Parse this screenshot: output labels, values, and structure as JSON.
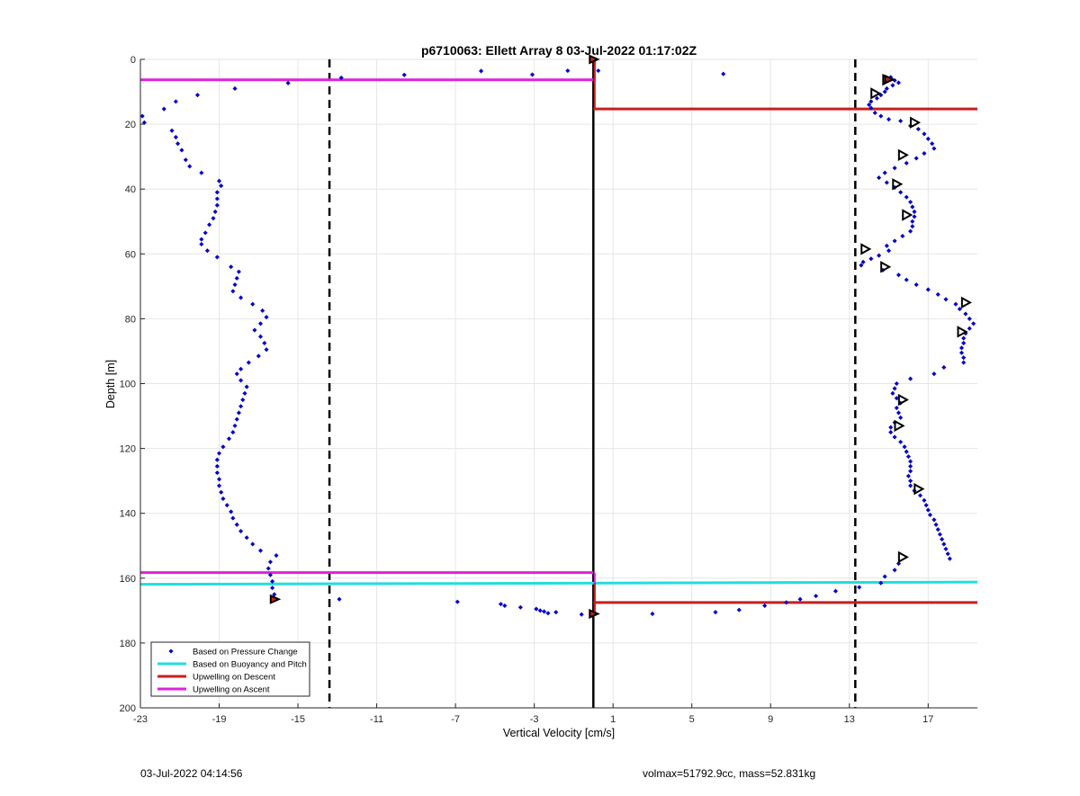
{
  "chart_data": {
    "type": "scatter",
    "title": "p6710063: Ellett Array 8 03-Jul-2022 01:17:02Z",
    "xlabel": "Vertical Velocity [cm/s]",
    "ylabel": "Depth [m]",
    "xlim": [
      -23,
      19.5
    ],
    "ylim": [
      0,
      200
    ],
    "y_reversed": true,
    "grid": true,
    "xticks": [
      -23,
      -19,
      -15,
      -11,
      -7,
      -3,
      1,
      5,
      9,
      13,
      17
    ],
    "yticks": [
      0,
      20,
      40,
      60,
      80,
      100,
      120,
      140,
      160,
      180,
      200
    ],
    "legend_position": "bottom-left",
    "legend": [
      {
        "label": "Based on Pressure Change",
        "color": "#0000cc",
        "kind": "dot"
      },
      {
        "label": "Based on Buoyancy and Pitch",
        "color": "#22dddd",
        "kind": "line"
      },
      {
        "label": "Upwelling on Descent",
        "color": "#c81e1e",
        "kind": "line"
      },
      {
        "label": "Upwelling on Ascent",
        "color": "#dd22dd",
        "kind": "line"
      }
    ],
    "vertical_lines": [
      {
        "x": -13.4,
        "style": "dashed",
        "color": "#000000"
      },
      {
        "x": 13.3,
        "style": "dashed",
        "color": "#000000"
      },
      {
        "x": 0,
        "style": "solid",
        "color": "#000000"
      }
    ],
    "horizontal_lines": [
      {
        "series": "Upwelling on Ascent",
        "y": 6.3,
        "x1": -23,
        "x2": 0,
        "color": "#dd22dd"
      },
      {
        "series": "Upwelling on Ascent",
        "y": 158.3,
        "x1": -23,
        "x2": 0,
        "color": "#dd22dd"
      },
      {
        "series": "Upwelling on Descent",
        "y": 15.3,
        "x1": 0,
        "x2": 19.5,
        "color": "#c81e1e"
      },
      {
        "series": "Upwelling on Descent",
        "y": 167.5,
        "x1": 0,
        "x2": 19.5,
        "color": "#c81e1e"
      },
      {
        "series": "Based on Buoyancy and Pitch",
        "y1": 161.9,
        "y2": 161.2,
        "x1": -23,
        "x2": 19.5,
        "color": "#22dddd"
      }
    ],
    "vertical_segments": [
      {
        "x": 0,
        "y1": 0,
        "y2": 6.3,
        "color": "#dd22dd"
      },
      {
        "x": 0,
        "y1": 158.3,
        "y2": 171,
        "color": "#dd22dd"
      },
      {
        "x": 0,
        "y1": 0,
        "y2": 15.3,
        "color": "#c81e1e"
      },
      {
        "x": 0,
        "y1": 161.5,
        "y2": 171,
        "color": "#c81e1e"
      }
    ],
    "series": [
      {
        "name": "Based on Pressure Change",
        "color": "#0000cc",
        "points": [
          [
            -22.9,
            17.5
          ],
          [
            -22.8,
            19.5
          ],
          [
            -21.8,
            15.3
          ],
          [
            -21.2,
            13
          ],
          [
            -20.1,
            11
          ],
          [
            -18.2,
            9
          ],
          [
            -15.5,
            7.3
          ],
          [
            -12.8,
            5.7
          ],
          [
            -9.6,
            4.8
          ],
          [
            -5.7,
            3.6
          ],
          [
            -3.1,
            4.7
          ],
          [
            -1.3,
            3.5
          ],
          [
            0.25,
            3.5
          ],
          [
            6.6,
            4.5
          ],
          [
            -21.4,
            22
          ],
          [
            -21.2,
            24
          ],
          [
            -21.1,
            26
          ],
          [
            -20.9,
            28
          ],
          [
            -20.7,
            31
          ],
          [
            -20.5,
            33
          ],
          [
            -19.9,
            35
          ],
          [
            -19,
            37.5
          ],
          [
            -18.9,
            39
          ],
          [
            -19.1,
            41
          ],
          [
            -19.1,
            43
          ],
          [
            -19.1,
            45
          ],
          [
            -19.2,
            47
          ],
          [
            -19.3,
            49
          ],
          [
            -19.5,
            51
          ],
          [
            -19.7,
            53.5
          ],
          [
            -19.9,
            55.5
          ],
          [
            -19.9,
            57
          ],
          [
            -19.6,
            59
          ],
          [
            -19.1,
            61
          ],
          [
            -18.4,
            64
          ],
          [
            -18,
            65.5
          ],
          [
            -18.1,
            67.5
          ],
          [
            -18.2,
            69.5
          ],
          [
            -18.3,
            71.5
          ],
          [
            -17.9,
            73.5
          ],
          [
            -17.3,
            75.5
          ],
          [
            -16.8,
            77.5
          ],
          [
            -16.6,
            79.5
          ],
          [
            -16.9,
            81.5
          ],
          [
            -17.2,
            83.5
          ],
          [
            -16.9,
            85.5
          ],
          [
            -16.7,
            87.5
          ],
          [
            -16.6,
            89.5
          ],
          [
            -17,
            91.5
          ],
          [
            -17.5,
            93.5
          ],
          [
            -17.9,
            95.5
          ],
          [
            -18.1,
            97
          ],
          [
            -17.9,
            99
          ],
          [
            -17.6,
            101
          ],
          [
            -17.7,
            103
          ],
          [
            -17.8,
            105
          ],
          [
            -17.9,
            107
          ],
          [
            -18,
            109
          ],
          [
            -18.1,
            111
          ],
          [
            -18.2,
            113
          ],
          [
            -18.3,
            115
          ],
          [
            -18.5,
            117
          ],
          [
            -18.8,
            119.5
          ],
          [
            -19,
            121.5
          ],
          [
            -19.1,
            123.5
          ],
          [
            -19.1,
            125.5
          ],
          [
            -19.1,
            127.5
          ],
          [
            -19,
            129.5
          ],
          [
            -19,
            131.5
          ],
          [
            -18.9,
            133.5
          ],
          [
            -18.8,
            135.5
          ],
          [
            -18.6,
            137.5
          ],
          [
            -18.4,
            139.5
          ],
          [
            -18.3,
            141.5
          ],
          [
            -18.1,
            143.5
          ],
          [
            -17.9,
            145.5
          ],
          [
            -17.6,
            147.5
          ],
          [
            -17.3,
            149.5
          ],
          [
            -16.9,
            151.5
          ],
          [
            -16.1,
            153
          ],
          [
            -16.4,
            155
          ],
          [
            -16.5,
            157
          ],
          [
            -16.4,
            159
          ],
          [
            -16.3,
            161
          ],
          [
            -16.3,
            163
          ],
          [
            -16.2,
            165
          ],
          [
            -16.2,
            166.8
          ],
          [
            -12.9,
            166.5
          ],
          [
            -6.9,
            167.3
          ],
          [
            -4.7,
            168
          ],
          [
            -4.5,
            168.5
          ],
          [
            -3.7,
            169
          ],
          [
            -2.9,
            169.5
          ],
          [
            -2.7,
            170
          ],
          [
            -2.5,
            170.3
          ],
          [
            -2.3,
            170.8
          ],
          [
            -1.9,
            170.5
          ],
          [
            -0.6,
            171.2
          ],
          [
            3,
            171
          ],
          [
            6.2,
            170.5
          ],
          [
            7.4,
            169.8
          ],
          [
            8.7,
            168.5
          ],
          [
            9.8,
            167.5
          ],
          [
            10.5,
            166.5
          ],
          [
            11.3,
            165.5
          ],
          [
            12.3,
            164
          ],
          [
            13.5,
            162.8
          ],
          [
            14.6,
            161.5
          ],
          [
            14.8,
            159.5
          ],
          [
            15.3,
            157.5
          ],
          [
            15.5,
            155.5
          ],
          [
            15.1,
            5.5
          ],
          [
            15.3,
            6.5
          ],
          [
            15.5,
            7.2
          ],
          [
            15.2,
            8
          ],
          [
            14.9,
            9
          ],
          [
            14.8,
            10
          ],
          [
            14.6,
            11
          ],
          [
            14.4,
            12
          ],
          [
            14.1,
            13
          ],
          [
            14,
            14
          ],
          [
            14.1,
            15
          ],
          [
            14.3,
            16.5
          ],
          [
            14.6,
            17.5
          ],
          [
            15,
            18.5
          ],
          [
            15.6,
            19
          ],
          [
            16.1,
            20.5
          ],
          [
            16.5,
            21.5
          ],
          [
            16.8,
            23
          ],
          [
            17,
            24.5
          ],
          [
            17.2,
            26
          ],
          [
            17.3,
            27.5
          ],
          [
            16.8,
            29
          ],
          [
            16.4,
            30.5
          ],
          [
            15.9,
            32
          ],
          [
            15.3,
            33.5
          ],
          [
            14.8,
            35
          ],
          [
            14.5,
            36.5
          ],
          [
            14.9,
            38
          ],
          [
            15.3,
            39.5
          ],
          [
            15.6,
            41
          ],
          [
            15.9,
            42.5
          ],
          [
            16.1,
            44
          ],
          [
            16.2,
            45.5
          ],
          [
            16.3,
            47
          ],
          [
            16.3,
            48.5
          ],
          [
            16.2,
            50
          ],
          [
            16.2,
            51.5
          ],
          [
            16.1,
            53
          ],
          [
            15.7,
            54.5
          ],
          [
            15.3,
            56
          ],
          [
            14.9,
            57.5
          ],
          [
            15,
            59
          ],
          [
            14.5,
            60.5
          ],
          [
            14.1,
            61.5
          ],
          [
            13.7,
            62.5
          ],
          [
            13.6,
            63.5
          ],
          [
            14.7,
            65
          ],
          [
            15.5,
            66.5
          ],
          [
            15.9,
            68
          ],
          [
            16.4,
            69.5
          ],
          [
            17,
            71
          ],
          [
            17.5,
            72.5
          ],
          [
            17.9,
            74
          ],
          [
            18.4,
            75.5
          ],
          [
            18.6,
            77
          ],
          [
            18.9,
            78.5
          ],
          [
            19.1,
            80
          ],
          [
            19.3,
            81.5
          ],
          [
            19.1,
            83
          ],
          [
            18.9,
            84.5
          ],
          [
            18.8,
            86
          ],
          [
            18.8,
            87.5
          ],
          [
            18.7,
            89
          ],
          [
            18.7,
            90.5
          ],
          [
            18.8,
            92
          ],
          [
            18.8,
            93.5
          ],
          [
            17.8,
            95
          ],
          [
            17.3,
            97
          ],
          [
            16.1,
            98.5
          ],
          [
            15.4,
            100
          ],
          [
            15.3,
            101.5
          ],
          [
            15.2,
            103
          ],
          [
            15.4,
            104.5
          ],
          [
            15.6,
            106
          ],
          [
            15.4,
            107.5
          ],
          [
            15.5,
            109
          ],
          [
            15.6,
            110.5
          ],
          [
            15.3,
            112
          ],
          [
            15.1,
            113.5
          ],
          [
            15.1,
            115
          ],
          [
            15.3,
            116.5
          ],
          [
            15.6,
            118
          ],
          [
            15.8,
            119.5
          ],
          [
            15.9,
            121
          ],
          [
            16,
            122.5
          ],
          [
            16.1,
            124
          ],
          [
            16.1,
            125.5
          ],
          [
            16.1,
            127
          ],
          [
            16,
            128.5
          ],
          [
            16.1,
            130
          ],
          [
            16.1,
            131.5
          ],
          [
            16.3,
            133
          ],
          [
            16.6,
            134.5
          ],
          [
            16.8,
            136
          ],
          [
            16.9,
            137.5
          ],
          [
            17,
            139
          ],
          [
            17.1,
            140.5
          ],
          [
            17.3,
            142
          ],
          [
            17.4,
            143.5
          ],
          [
            17.5,
            145
          ],
          [
            17.6,
            146.5
          ],
          [
            17.7,
            148
          ],
          [
            17.8,
            149.5
          ],
          [
            17.9,
            151
          ],
          [
            18,
            152.5
          ],
          [
            18.1,
            154
          ]
        ]
      },
      {
        "name": "Based on Buoyancy and Pitch",
        "color": "#000000",
        "marker": "triangle-right",
        "points": [
          [
            14.9,
            6.3
          ],
          [
            14.3,
            10.5
          ],
          [
            16.3,
            19.5
          ],
          [
            15.7,
            29.5
          ],
          [
            15.4,
            38.5
          ],
          [
            15.9,
            48
          ],
          [
            13.8,
            58.5
          ],
          [
            14.8,
            64
          ],
          [
            18.9,
            75
          ],
          [
            18.7,
            84
          ],
          [
            15.7,
            105
          ],
          [
            15.5,
            113
          ],
          [
            16.5,
            132.5
          ],
          [
            15.7,
            153.5
          ]
        ]
      }
    ],
    "special_markers": [
      {
        "x": 0,
        "y": 0,
        "color": "#c81e1e",
        "edge": "#000000"
      },
      {
        "x": 15.0,
        "y": 6.2,
        "color": "#c81e1e",
        "edge": "#000000"
      },
      {
        "x": -16.2,
        "y": 166.5,
        "color": "#c81e1e",
        "edge": "#000000"
      },
      {
        "x": 0,
        "y": 171.0,
        "color": "#c81e1e",
        "edge": "#000000"
      }
    ]
  },
  "footer": {
    "left": "03-Jul-2022 04:14:56",
    "right": "volmax=51792.9cc, mass=52.831kg"
  }
}
